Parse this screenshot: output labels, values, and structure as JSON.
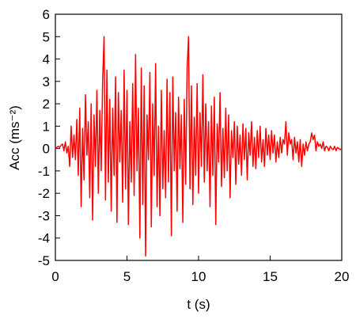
{
  "chart_data": {
    "type": "line",
    "xlabel": "t (s)",
    "ylabel": "Acc (ms⁻²)",
    "xlim": [
      0,
      20
    ],
    "xticks": [
      0,
      5,
      10,
      15,
      20
    ],
    "ylim": [
      -5,
      6
    ],
    "yticks": [
      -5,
      -4,
      -3,
      -2,
      -1,
      0,
      1,
      2,
      3,
      4,
      5,
      6
    ],
    "grid": false,
    "series": [
      {
        "color": "#ff0000",
        "x": [
          0,
          0.1,
          0.2,
          0.3,
          0.4,
          0.5,
          0.6,
          0.7,
          0.8,
          0.9,
          1,
          1.1,
          1.2,
          1.3,
          1.4,
          1.5,
          1.6,
          1.7,
          1.8,
          1.9,
          2,
          2.1,
          2.2,
          2.3,
          2.4,
          2.5,
          2.6,
          2.7,
          2.8,
          2.9,
          3,
          3.1,
          3.2,
          3.3,
          3.4,
          3.5,
          3.6,
          3.7,
          3.8,
          3.9,
          4,
          4.1,
          4.2,
          4.3,
          4.4,
          4.5,
          4.6,
          4.7,
          4.8,
          4.9,
          5,
          5.1,
          5.2,
          5.3,
          5.4,
          5.5,
          5.6,
          5.7,
          5.8,
          5.9,
          6,
          6.1,
          6.2,
          6.3,
          6.4,
          6.5,
          6.6,
          6.7,
          6.8,
          6.9,
          7,
          7.1,
          7.2,
          7.3,
          7.4,
          7.5,
          7.6,
          7.7,
          7.8,
          7.9,
          8,
          8.1,
          8.2,
          8.3,
          8.4,
          8.5,
          8.6,
          8.7,
          8.8,
          8.9,
          9,
          9.1,
          9.2,
          9.3,
          9.4,
          9.5,
          9.6,
          9.7,
          9.8,
          9.9,
          10,
          10.1,
          10.2,
          10.3,
          10.4,
          10.5,
          10.6,
          10.7,
          10.8,
          10.9,
          11,
          11.1,
          11.2,
          11.3,
          11.4,
          11.5,
          11.6,
          11.7,
          11.8,
          11.9,
          12,
          12.1,
          12.2,
          12.3,
          12.4,
          12.5,
          12.6,
          12.7,
          12.8,
          12.9,
          13,
          13.1,
          13.2,
          13.3,
          13.4,
          13.5,
          13.6,
          13.7,
          13.8,
          13.9,
          14,
          14.1,
          14.2,
          14.3,
          14.4,
          14.5,
          14.6,
          14.7,
          14.8,
          14.9,
          15,
          15.1,
          15.2,
          15.3,
          15.4,
          15.5,
          15.6,
          15.7,
          15.8,
          15.9,
          16,
          16.1,
          16.2,
          16.3,
          16.4,
          16.5,
          16.6,
          16.7,
          16.8,
          16.9,
          17,
          17.1,
          17.2,
          17.3,
          17.4,
          17.5,
          17.6,
          17.7,
          17.8,
          17.9,
          18,
          18.1,
          18.2,
          18.3,
          18.4,
          18.5,
          18.6,
          18.7,
          18.8,
          18.9,
          19,
          19.1,
          19.2,
          19.3,
          19.4,
          19.5,
          19.6,
          19.7,
          19.8,
          19.9,
          20
        ],
        "values": [
          0,
          0.05,
          0.1,
          0.05,
          0.15,
          0.2,
          -0.1,
          0.3,
          -0.2,
          0.1,
          -0.8,
          1.0,
          -0.4,
          0.6,
          -0.5,
          1.3,
          -1.2,
          1.8,
          -2.6,
          0.9,
          -1.4,
          2.4,
          -0.3,
          1.2,
          -2.2,
          2.0,
          -3.2,
          1.5,
          -0.8,
          2.6,
          -2.0,
          1.7,
          -1.0,
          3.0,
          5.0,
          -2.3,
          3.5,
          -1.5,
          2.2,
          -2.8,
          1.8,
          -1.2,
          3.2,
          -3.3,
          2.5,
          -0.6,
          1.7,
          -2.4,
          3.5,
          -1.8,
          2.6,
          -3.4,
          1.2,
          -1.5,
          2.9,
          -2.1,
          4.2,
          -1.0,
          1.8,
          -4.0,
          3.6,
          -2.5,
          2.8,
          -4.8,
          1.5,
          -0.5,
          3.4,
          -3.5,
          2.0,
          -1.2,
          3.8,
          -2.6,
          1.0,
          -3.0,
          2.6,
          -1.8,
          0.8,
          -2.2,
          3.1,
          -1.5,
          2.5,
          -3.9,
          3.2,
          -1.0,
          1.6,
          -2.8,
          2.3,
          -0.9,
          1.5,
          -3.3,
          2.2,
          -1.6,
          3.6,
          5.0,
          -1.8,
          2.8,
          -2.5,
          1.4,
          -1.2,
          2.9,
          -2.0,
          1.6,
          -0.8,
          3.3,
          -1.5,
          2.0,
          -1.0,
          1.2,
          -2.6,
          1.9,
          -1.2,
          2.3,
          -3.4,
          1.1,
          -0.6,
          2.5,
          -1.7,
          0.9,
          -1.3,
          1.8,
          -1.0,
          1.5,
          -2.2,
          0.8,
          -0.4,
          1.2,
          -1.6,
          1.0,
          -0.7,
          0.6,
          -1.2,
          1.1,
          -0.5,
          0.9,
          -1.4,
          0.7,
          -0.3,
          1.2,
          -0.8,
          0.5,
          -0.9,
          0.8,
          -0.4,
          1.0,
          -0.6,
          0.4,
          -0.8,
          0.9,
          -0.3,
          0.6,
          -0.5,
          0.8,
          -0.2,
          0.6,
          -0.6,
          0.3,
          -0.4,
          0.5,
          -0.2,
          0.4,
          0.2,
          1.2,
          -0.3,
          0.7,
          0.2,
          0.4,
          -0.5,
          0.5,
          -0.2,
          0.3,
          -0.6,
          0.4,
          -0.8,
          0.2,
          -0.3,
          0.3,
          -0.1,
          0.2,
          0.3,
          0.7,
          0.4,
          0.6,
          -0.1,
          0.3,
          0.1,
          0.2,
          0.0,
          0.3,
          -0.1,
          0.1,
          0.05,
          -0.1,
          0.1,
          0.0,
          -0.05,
          0.1,
          -0.1,
          0.05,
          0.0,
          -0.05,
          0.0
        ]
      }
    ]
  }
}
